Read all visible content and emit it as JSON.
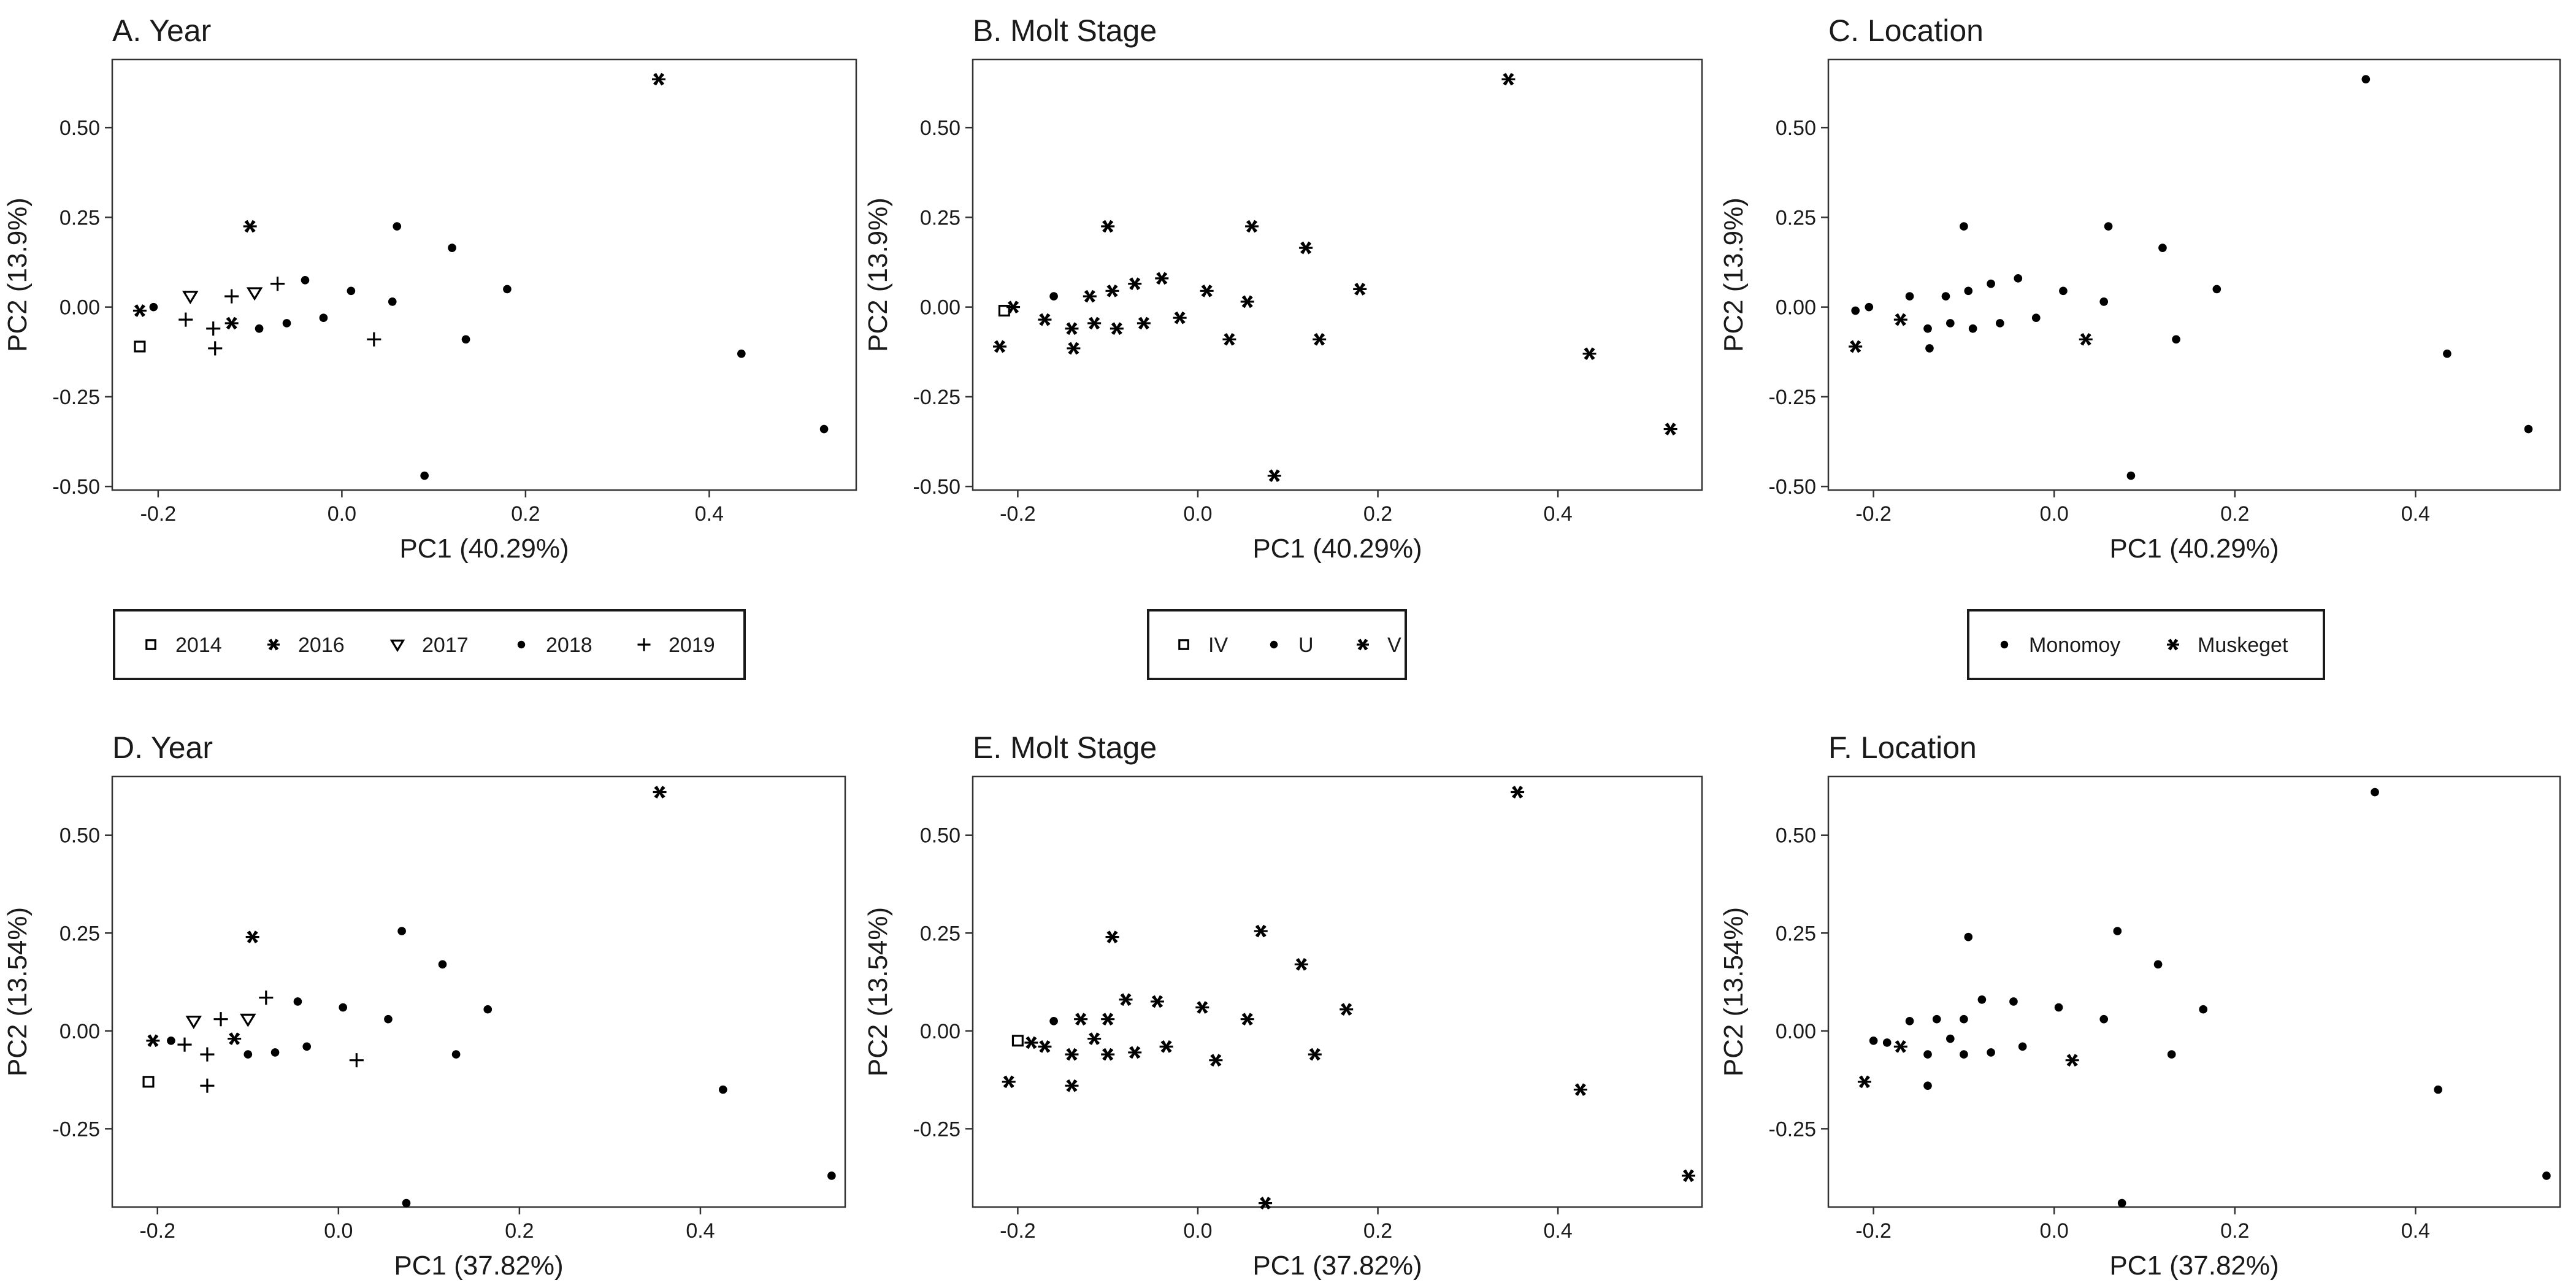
{
  "figure": {
    "legends": [
      {
        "items": [
          {
            "label": "2014",
            "shape": "square-open"
          },
          {
            "label": "2016",
            "shape": "asterisk"
          },
          {
            "label": "2017",
            "shape": "triangle-down-open"
          },
          {
            "label": "2018",
            "shape": "circle-filled"
          },
          {
            "label": "2019",
            "shape": "plus"
          }
        ]
      },
      {
        "items": [
          {
            "label": "IV",
            "shape": "square-open"
          },
          {
            "label": "U",
            "shape": "circle-filled"
          },
          {
            "label": "V",
            "shape": "asterisk"
          }
        ]
      },
      {
        "items": [
          {
            "label": "Monomoy",
            "shape": "circle-filled"
          },
          {
            "label": "Muskeget",
            "shape": "asterisk"
          }
        ]
      }
    ]
  },
  "chart_data": [
    {
      "type": "scatter",
      "title": "A. Year",
      "xlabel": "PC1 (40.29%)",
      "ylabel": "PC2 (13.9%)",
      "xlim": [
        -0.25,
        0.56
      ],
      "ylim": [
        -0.51,
        0.69
      ],
      "xticks": [
        "-0.2",
        "0.0",
        "0.2",
        "0.4"
      ],
      "xtick_values": [
        -0.2,
        0.0,
        0.2,
        0.4
      ],
      "yticks": [
        "-0.50",
        "-0.25",
        "0.00",
        "0.25",
        "0.50"
      ],
      "ytick_values": [
        -0.5,
        -0.25,
        0.0,
        0.25,
        0.5
      ],
      "grid": false,
      "legend_group": "Year",
      "points": [
        {
          "x": -0.22,
          "y": -0.11,
          "group": "2014"
        },
        {
          "x": -0.22,
          "y": -0.01,
          "group": "2016"
        },
        {
          "x": -0.1,
          "y": 0.225,
          "group": "2016"
        },
        {
          "x": -0.12,
          "y": -0.045,
          "group": "2016"
        },
        {
          "x": 0.345,
          "y": 0.635,
          "group": "2016"
        },
        {
          "x": -0.165,
          "y": 0.03,
          "group": "2017"
        },
        {
          "x": -0.095,
          "y": 0.04,
          "group": "2017"
        },
        {
          "x": -0.205,
          "y": 0.0,
          "group": "2018"
        },
        {
          "x": -0.09,
          "y": -0.06,
          "group": "2018"
        },
        {
          "x": -0.06,
          "y": -0.045,
          "group": "2018"
        },
        {
          "x": -0.04,
          "y": 0.075,
          "group": "2018"
        },
        {
          "x": -0.02,
          "y": -0.03,
          "group": "2018"
        },
        {
          "x": 0.01,
          "y": 0.045,
          "group": "2018"
        },
        {
          "x": 0.055,
          "y": 0.015,
          "group": "2018"
        },
        {
          "x": 0.06,
          "y": 0.225,
          "group": "2018"
        },
        {
          "x": 0.12,
          "y": 0.165,
          "group": "2018"
        },
        {
          "x": 0.135,
          "y": -0.09,
          "group": "2018"
        },
        {
          "x": 0.18,
          "y": 0.05,
          "group": "2018"
        },
        {
          "x": 0.09,
          "y": -0.47,
          "group": "2018"
        },
        {
          "x": 0.435,
          "y": -0.13,
          "group": "2018"
        },
        {
          "x": 0.525,
          "y": -0.34,
          "group": "2018"
        },
        {
          "x": -0.17,
          "y": -0.035,
          "group": "2019"
        },
        {
          "x": -0.14,
          "y": -0.06,
          "group": "2019"
        },
        {
          "x": -0.138,
          "y": -0.115,
          "group": "2019"
        },
        {
          "x": -0.12,
          "y": 0.03,
          "group": "2019"
        },
        {
          "x": -0.07,
          "y": 0.065,
          "group": "2019"
        },
        {
          "x": 0.035,
          "y": -0.09,
          "group": "2019"
        }
      ]
    },
    {
      "type": "scatter",
      "title": "B. Molt Stage",
      "xlabel": "PC1 (40.29%)",
      "ylabel": "PC2 (13.9%)",
      "xlim": [
        -0.25,
        0.56
      ],
      "ylim": [
        -0.51,
        0.69
      ],
      "xticks": [
        "-0.2",
        "0.0",
        "0.2",
        "0.4"
      ],
      "xtick_values": [
        -0.2,
        0.0,
        0.2,
        0.4
      ],
      "yticks": [
        "-0.50",
        "-0.25",
        "0.00",
        "0.25",
        "0.50"
      ],
      "ytick_values": [
        -0.5,
        -0.25,
        0.0,
        0.25,
        0.5
      ],
      "grid": false,
      "legend_group": "Molt Stage",
      "points": [
        {
          "x": -0.215,
          "y": -0.01,
          "group": "IV"
        },
        {
          "x": -0.16,
          "y": 0.03,
          "group": "U"
        },
        {
          "x": -0.22,
          "y": -0.11,
          "group": "V"
        },
        {
          "x": -0.205,
          "y": 0.0,
          "group": "V"
        },
        {
          "x": -0.17,
          "y": -0.035,
          "group": "V"
        },
        {
          "x": -0.14,
          "y": -0.06,
          "group": "V"
        },
        {
          "x": -0.138,
          "y": -0.115,
          "group": "V"
        },
        {
          "x": -0.12,
          "y": 0.03,
          "group": "V"
        },
        {
          "x": -0.115,
          "y": -0.045,
          "group": "V"
        },
        {
          "x": -0.1,
          "y": 0.225,
          "group": "V"
        },
        {
          "x": -0.095,
          "y": 0.045,
          "group": "V"
        },
        {
          "x": -0.09,
          "y": -0.06,
          "group": "V"
        },
        {
          "x": -0.07,
          "y": 0.065,
          "group": "V"
        },
        {
          "x": -0.06,
          "y": -0.045,
          "group": "V"
        },
        {
          "x": -0.04,
          "y": 0.08,
          "group": "V"
        },
        {
          "x": -0.02,
          "y": -0.03,
          "group": "V"
        },
        {
          "x": 0.01,
          "y": 0.045,
          "group": "V"
        },
        {
          "x": 0.035,
          "y": -0.09,
          "group": "V"
        },
        {
          "x": 0.055,
          "y": 0.015,
          "group": "V"
        },
        {
          "x": 0.06,
          "y": 0.225,
          "group": "V"
        },
        {
          "x": 0.085,
          "y": -0.47,
          "group": "V"
        },
        {
          "x": 0.12,
          "y": 0.165,
          "group": "V"
        },
        {
          "x": 0.135,
          "y": -0.09,
          "group": "V"
        },
        {
          "x": 0.18,
          "y": 0.05,
          "group": "V"
        },
        {
          "x": 0.345,
          "y": 0.635,
          "group": "V"
        },
        {
          "x": 0.435,
          "y": -0.13,
          "group": "V"
        },
        {
          "x": 0.525,
          "y": -0.34,
          "group": "V"
        }
      ]
    },
    {
      "type": "scatter",
      "title": "C. Location",
      "xlabel": "PC1 (40.29%)",
      "ylabel": "PC2 (13.9%)",
      "xlim": [
        -0.25,
        0.56
      ],
      "ylim": [
        -0.51,
        0.69
      ],
      "xticks": [
        "-0.2",
        "0.0",
        "0.2",
        "0.4"
      ],
      "xtick_values": [
        -0.2,
        0.0,
        0.2,
        0.4
      ],
      "yticks": [
        "-0.50",
        "-0.25",
        "0.00",
        "0.25",
        "0.50"
      ],
      "ytick_values": [
        -0.5,
        -0.25,
        0.0,
        0.25,
        0.5
      ],
      "grid": false,
      "legend_group": "Location",
      "points": [
        {
          "x": -0.22,
          "y": -0.01,
          "group": "Monomoy"
        },
        {
          "x": -0.205,
          "y": 0.0,
          "group": "Monomoy"
        },
        {
          "x": -0.16,
          "y": 0.03,
          "group": "Monomoy"
        },
        {
          "x": -0.14,
          "y": -0.06,
          "group": "Monomoy"
        },
        {
          "x": -0.138,
          "y": -0.115,
          "group": "Monomoy"
        },
        {
          "x": -0.12,
          "y": 0.03,
          "group": "Monomoy"
        },
        {
          "x": -0.115,
          "y": -0.045,
          "group": "Monomoy"
        },
        {
          "x": -0.1,
          "y": 0.225,
          "group": "Monomoy"
        },
        {
          "x": -0.095,
          "y": 0.045,
          "group": "Monomoy"
        },
        {
          "x": -0.09,
          "y": -0.06,
          "group": "Monomoy"
        },
        {
          "x": -0.07,
          "y": 0.065,
          "group": "Monomoy"
        },
        {
          "x": -0.06,
          "y": -0.045,
          "group": "Monomoy"
        },
        {
          "x": -0.04,
          "y": 0.08,
          "group": "Monomoy"
        },
        {
          "x": -0.02,
          "y": -0.03,
          "group": "Monomoy"
        },
        {
          "x": 0.01,
          "y": 0.045,
          "group": "Monomoy"
        },
        {
          "x": 0.055,
          "y": 0.015,
          "group": "Monomoy"
        },
        {
          "x": 0.06,
          "y": 0.225,
          "group": "Monomoy"
        },
        {
          "x": 0.085,
          "y": -0.47,
          "group": "Monomoy"
        },
        {
          "x": 0.12,
          "y": 0.165,
          "group": "Monomoy"
        },
        {
          "x": 0.135,
          "y": -0.09,
          "group": "Monomoy"
        },
        {
          "x": 0.18,
          "y": 0.05,
          "group": "Monomoy"
        },
        {
          "x": 0.345,
          "y": 0.635,
          "group": "Monomoy"
        },
        {
          "x": 0.435,
          "y": -0.13,
          "group": "Monomoy"
        },
        {
          "x": 0.525,
          "y": -0.34,
          "group": "Monomoy"
        },
        {
          "x": -0.22,
          "y": -0.11,
          "group": "Muskeget"
        },
        {
          "x": -0.17,
          "y": -0.035,
          "group": "Muskeget"
        },
        {
          "x": 0.035,
          "y": -0.09,
          "group": "Muskeget"
        }
      ]
    },
    {
      "type": "scatter",
      "title": "D. Year",
      "xlabel": "PC1 (37.82%)",
      "ylabel": "PC2 (13.54%)",
      "xlim": [
        -0.25,
        0.56
      ],
      "ylim": [
        -0.45,
        0.65
      ],
      "xticks": [
        "-0.2",
        "0.0",
        "0.2",
        "0.4"
      ],
      "xtick_values": [
        -0.2,
        0.0,
        0.2,
        0.4
      ],
      "yticks": [
        "-0.25",
        "0.00",
        "0.25",
        "0.50"
      ],
      "ytick_values": [
        -0.25,
        0.0,
        0.25,
        0.5
      ],
      "grid": false,
      "legend_group": "Year",
      "points": [
        {
          "x": -0.21,
          "y": -0.13,
          "group": "2014"
        },
        {
          "x": -0.205,
          "y": -0.025,
          "group": "2016"
        },
        {
          "x": -0.115,
          "y": -0.02,
          "group": "2016"
        },
        {
          "x": -0.095,
          "y": 0.24,
          "group": "2016"
        },
        {
          "x": 0.355,
          "y": 0.61,
          "group": "2016"
        },
        {
          "x": -0.16,
          "y": 0.025,
          "group": "2017"
        },
        {
          "x": -0.1,
          "y": 0.03,
          "group": "2017"
        },
        {
          "x": -0.185,
          "y": -0.025,
          "group": "2018"
        },
        {
          "x": -0.1,
          "y": -0.06,
          "group": "2018"
        },
        {
          "x": -0.07,
          "y": -0.055,
          "group": "2018"
        },
        {
          "x": -0.045,
          "y": 0.075,
          "group": "2018"
        },
        {
          "x": -0.035,
          "y": -0.04,
          "group": "2018"
        },
        {
          "x": 0.005,
          "y": 0.06,
          "group": "2018"
        },
        {
          "x": 0.055,
          "y": 0.03,
          "group": "2018"
        },
        {
          "x": 0.07,
          "y": 0.255,
          "group": "2018"
        },
        {
          "x": 0.075,
          "y": -0.44,
          "group": "2018"
        },
        {
          "x": 0.115,
          "y": 0.17,
          "group": "2018"
        },
        {
          "x": 0.13,
          "y": -0.06,
          "group": "2018"
        },
        {
          "x": 0.165,
          "y": 0.055,
          "group": "2018"
        },
        {
          "x": 0.425,
          "y": -0.15,
          "group": "2018"
        },
        {
          "x": 0.545,
          "y": -0.37,
          "group": "2018"
        },
        {
          "x": -0.17,
          "y": -0.035,
          "group": "2019"
        },
        {
          "x": -0.145,
          "y": -0.06,
          "group": "2019"
        },
        {
          "x": -0.145,
          "y": -0.14,
          "group": "2019"
        },
        {
          "x": -0.13,
          "y": 0.03,
          "group": "2019"
        },
        {
          "x": -0.08,
          "y": 0.085,
          "group": "2019"
        },
        {
          "x": 0.02,
          "y": -0.075,
          "group": "2019"
        }
      ]
    },
    {
      "type": "scatter",
      "title": "E. Molt Stage",
      "xlabel": "PC1 (37.82%)",
      "ylabel": "PC2 (13.54%)",
      "xlim": [
        -0.25,
        0.56
      ],
      "ylim": [
        -0.45,
        0.65
      ],
      "xticks": [
        "-0.2",
        "0.0",
        "0.2",
        "0.4"
      ],
      "xtick_values": [
        -0.2,
        0.0,
        0.2,
        0.4
      ],
      "yticks": [
        "-0.25",
        "0.00",
        "0.25",
        "0.50"
      ],
      "ytick_values": [
        -0.25,
        0.0,
        0.25,
        0.5
      ],
      "grid": false,
      "legend_group": "Molt Stage",
      "points": [
        {
          "x": -0.2,
          "y": -0.025,
          "group": "IV"
        },
        {
          "x": -0.16,
          "y": 0.025,
          "group": "U"
        },
        {
          "x": -0.21,
          "y": -0.13,
          "group": "V"
        },
        {
          "x": -0.185,
          "y": -0.03,
          "group": "V"
        },
        {
          "x": -0.17,
          "y": -0.04,
          "group": "V"
        },
        {
          "x": -0.14,
          "y": -0.06,
          "group": "V"
        },
        {
          "x": -0.14,
          "y": -0.14,
          "group": "V"
        },
        {
          "x": -0.13,
          "y": 0.03,
          "group": "V"
        },
        {
          "x": -0.115,
          "y": -0.02,
          "group": "V"
        },
        {
          "x": -0.1,
          "y": 0.03,
          "group": "V"
        },
        {
          "x": -0.1,
          "y": -0.06,
          "group": "V"
        },
        {
          "x": -0.095,
          "y": 0.24,
          "group": "V"
        },
        {
          "x": -0.08,
          "y": 0.08,
          "group": "V"
        },
        {
          "x": -0.07,
          "y": -0.055,
          "group": "V"
        },
        {
          "x": -0.045,
          "y": 0.075,
          "group": "V"
        },
        {
          "x": -0.035,
          "y": -0.04,
          "group": "V"
        },
        {
          "x": 0.005,
          "y": 0.06,
          "group": "V"
        },
        {
          "x": 0.02,
          "y": -0.075,
          "group": "V"
        },
        {
          "x": 0.055,
          "y": 0.03,
          "group": "V"
        },
        {
          "x": 0.07,
          "y": 0.255,
          "group": "V"
        },
        {
          "x": 0.075,
          "y": -0.44,
          "group": "V"
        },
        {
          "x": 0.115,
          "y": 0.17,
          "group": "V"
        },
        {
          "x": 0.13,
          "y": -0.06,
          "group": "V"
        },
        {
          "x": 0.165,
          "y": 0.055,
          "group": "V"
        },
        {
          "x": 0.355,
          "y": 0.61,
          "group": "V"
        },
        {
          "x": 0.425,
          "y": -0.15,
          "group": "V"
        },
        {
          "x": 0.545,
          "y": -0.37,
          "group": "V"
        }
      ]
    },
    {
      "type": "scatter",
      "title": "F. Location",
      "xlabel": "PC1 (37.82%)",
      "ylabel": "PC2 (13.54%)",
      "xlim": [
        -0.25,
        0.56
      ],
      "ylim": [
        -0.45,
        0.65
      ],
      "xticks": [
        "-0.2",
        "0.0",
        "0.2",
        "0.4"
      ],
      "xtick_values": [
        -0.2,
        0.0,
        0.2,
        0.4
      ],
      "yticks": [
        "-0.25",
        "0.00",
        "0.25",
        "0.50"
      ],
      "ytick_values": [
        -0.25,
        0.0,
        0.25,
        0.5
      ],
      "grid": false,
      "legend_group": "Location",
      "points": [
        {
          "x": -0.2,
          "y": -0.025,
          "group": "Monomoy"
        },
        {
          "x": -0.185,
          "y": -0.03,
          "group": "Monomoy"
        },
        {
          "x": -0.16,
          "y": 0.025,
          "group": "Monomoy"
        },
        {
          "x": -0.14,
          "y": -0.06,
          "group": "Monomoy"
        },
        {
          "x": -0.14,
          "y": -0.14,
          "group": "Monomoy"
        },
        {
          "x": -0.13,
          "y": 0.03,
          "group": "Monomoy"
        },
        {
          "x": -0.115,
          "y": -0.02,
          "group": "Monomoy"
        },
        {
          "x": -0.1,
          "y": 0.03,
          "group": "Monomoy"
        },
        {
          "x": -0.1,
          "y": -0.06,
          "group": "Monomoy"
        },
        {
          "x": -0.095,
          "y": 0.24,
          "group": "Monomoy"
        },
        {
          "x": -0.08,
          "y": 0.08,
          "group": "Monomoy"
        },
        {
          "x": -0.07,
          "y": -0.055,
          "group": "Monomoy"
        },
        {
          "x": -0.045,
          "y": 0.075,
          "group": "Monomoy"
        },
        {
          "x": -0.035,
          "y": -0.04,
          "group": "Monomoy"
        },
        {
          "x": 0.005,
          "y": 0.06,
          "group": "Monomoy"
        },
        {
          "x": 0.055,
          "y": 0.03,
          "group": "Monomoy"
        },
        {
          "x": 0.07,
          "y": 0.255,
          "group": "Monomoy"
        },
        {
          "x": 0.075,
          "y": -0.44,
          "group": "Monomoy"
        },
        {
          "x": 0.115,
          "y": 0.17,
          "group": "Monomoy"
        },
        {
          "x": 0.13,
          "y": -0.06,
          "group": "Monomoy"
        },
        {
          "x": 0.165,
          "y": 0.055,
          "group": "Monomoy"
        },
        {
          "x": 0.355,
          "y": 0.61,
          "group": "Monomoy"
        },
        {
          "x": 0.425,
          "y": -0.15,
          "group": "Monomoy"
        },
        {
          "x": 0.545,
          "y": -0.37,
          "group": "Monomoy"
        },
        {
          "x": -0.21,
          "y": -0.13,
          "group": "Muskeget"
        },
        {
          "x": -0.17,
          "y": -0.04,
          "group": "Muskeget"
        },
        {
          "x": 0.02,
          "y": -0.075,
          "group": "Muskeget"
        }
      ]
    }
  ]
}
